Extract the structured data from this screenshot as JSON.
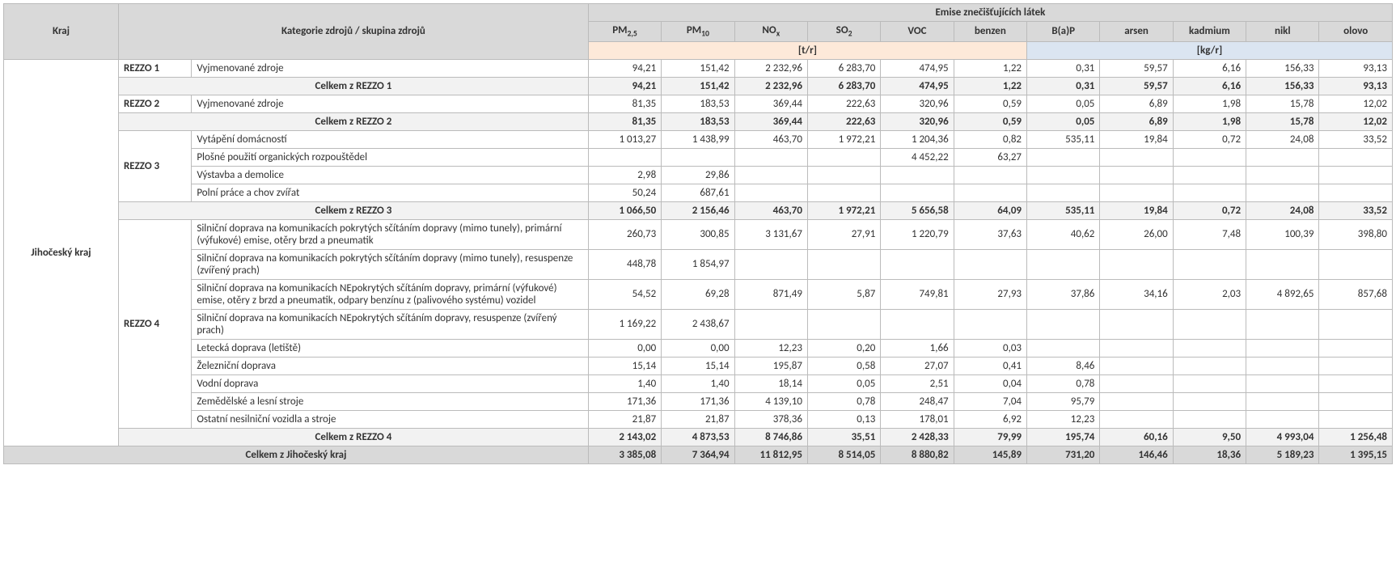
{
  "headers": {
    "kraj": "Kraj",
    "kategorie": "Kategorie zdrojů / skupina zdrojů",
    "emise": "Emise znečišťujících látek",
    "unit_tr": "[t/r]",
    "unit_kg": "[kg/r]",
    "pm25_a": "PM",
    "pm25_b": "2,5",
    "pm10_a": "PM",
    "pm10_b": "10",
    "nox_a": "NO",
    "nox_b": "x",
    "so2_a": "SO",
    "so2_b": "2",
    "voc": "VOC",
    "benzen": "benzen",
    "bap": "B(a)P",
    "arsen": "arsen",
    "kadm": "kadmium",
    "nikl": "nikl",
    "olovo": "olovo"
  },
  "kraj_name": "Jihočeský kraj",
  "rows": [
    {
      "rezzo": "REZZO 1",
      "rezzo_rows": 1,
      "kat": "Vyjmenované zdroje",
      "v": [
        "94,21",
        "151,42",
        "2 232,96",
        "6 283,70",
        "474,95",
        "1,22",
        "0,31",
        "59,57",
        "6,16",
        "156,33",
        "93,13"
      ]
    },
    {
      "subtotal": true,
      "kat": "Celkem z REZZO 1",
      "v": [
        "94,21",
        "151,42",
        "2 232,96",
        "6 283,70",
        "474,95",
        "1,22",
        "0,31",
        "59,57",
        "6,16",
        "156,33",
        "93,13"
      ]
    },
    {
      "rezzo": "REZZO 2",
      "rezzo_rows": 1,
      "kat": "Vyjmenované zdroje",
      "v": [
        "81,35",
        "183,53",
        "369,44",
        "222,63",
        "320,96",
        "0,59",
        "0,05",
        "6,89",
        "1,98",
        "15,78",
        "12,02"
      ]
    },
    {
      "subtotal": true,
      "kat": "Celkem z REZZO 2",
      "v": [
        "81,35",
        "183,53",
        "369,44",
        "222,63",
        "320,96",
        "0,59",
        "0,05",
        "6,89",
        "1,98",
        "15,78",
        "12,02"
      ]
    },
    {
      "rezzo": "REZZO 3",
      "rezzo_rows": 4,
      "kat": "Vytápění domácností",
      "v": [
        "1 013,27",
        "1 438,99",
        "463,70",
        "1 972,21",
        "1 204,36",
        "0,82",
        "535,11",
        "19,84",
        "0,72",
        "24,08",
        "33,52"
      ]
    },
    {
      "kat": "Plošné použití organických rozpouštědel",
      "v": [
        "",
        "",
        "",
        "",
        "4 452,22",
        "63,27",
        "",
        "",
        "",
        "",
        ""
      ]
    },
    {
      "kat": "Výstavba a demolice",
      "v": [
        "2,98",
        "29,86",
        "",
        "",
        "",
        "",
        "",
        "",
        "",
        "",
        ""
      ]
    },
    {
      "kat": "Polní práce a chov zvířat",
      "v": [
        "50,24",
        "687,61",
        "",
        "",
        "",
        "",
        "",
        "",
        "",
        "",
        ""
      ]
    },
    {
      "subtotal": true,
      "kat": "Celkem z REZZO 3",
      "v": [
        "1 066,50",
        "2 156,46",
        "463,70",
        "1 972,21",
        "5 656,58",
        "64,09",
        "535,11",
        "19,84",
        "0,72",
        "24,08",
        "33,52"
      ]
    },
    {
      "rezzo": "REZZO 4",
      "rezzo_rows": 9,
      "kat": "Silniční doprava na komunikacích pokrytých sčítáním dopravy (mimo tunely), primární (výfukové) emise, otěry brzd a pneumatik",
      "v": [
        "260,73",
        "300,85",
        "3 131,67",
        "27,91",
        "1 220,79",
        "37,63",
        "40,62",
        "26,00",
        "7,48",
        "100,39",
        "398,80"
      ]
    },
    {
      "kat": "Silniční doprava na komunikacích pokrytých sčítáním dopravy (mimo tunely), resuspenze (zvířený prach)",
      "v": [
        "448,78",
        "1 854,97",
        "",
        "",
        "",
        "",
        "",
        "",
        "",
        "",
        ""
      ]
    },
    {
      "kat": "Silniční doprava na komunikacích NEpokrytých sčítáním dopravy, primární (výfukové) emise, otěry z brzd a pneumatik, odpary benzínu z (palivového systému) vozidel",
      "v": [
        "54,52",
        "69,28",
        "871,49",
        "5,87",
        "749,81",
        "27,93",
        "37,86",
        "34,16",
        "2,03",
        "4 892,65",
        "857,68"
      ]
    },
    {
      "kat": "Silniční doprava na komunikacích NEpokrytých sčítáním dopravy, resuspenze (zvířený prach)",
      "v": [
        "1 169,22",
        "2 438,67",
        "",
        "",
        "",
        "",
        "",
        "",
        "",
        "",
        ""
      ]
    },
    {
      "kat": "Letecká doprava (letiště)",
      "v": [
        "0,00",
        "0,00",
        "12,23",
        "0,20",
        "1,66",
        "0,03",
        "",
        "",
        "",
        "",
        ""
      ]
    },
    {
      "kat": "Železniční doprava",
      "v": [
        "15,14",
        "15,14",
        "195,87",
        "0,58",
        "27,07",
        "0,41",
        "8,46",
        "",
        "",
        "",
        ""
      ]
    },
    {
      "kat": "Vodní doprava",
      "v": [
        "1,40",
        "1,40",
        "18,14",
        "0,05",
        "2,51",
        "0,04",
        "0,78",
        "",
        "",
        "",
        ""
      ]
    },
    {
      "kat": "Zemědělské a lesní stroje",
      "v": [
        "171,36",
        "171,36",
        "4 139,10",
        "0,78",
        "248,47",
        "7,04",
        "95,79",
        "",
        "",
        "",
        ""
      ]
    },
    {
      "kat": "Ostatní nesilniční vozidla a stroje",
      "v": [
        "21,87",
        "21,87",
        "378,36",
        "0,13",
        "178,01",
        "6,92",
        "12,23",
        "",
        "",
        "",
        ""
      ]
    },
    {
      "subtotal": true,
      "kat": "Celkem z REZZO 4",
      "v": [
        "2 143,02",
        "4 873,53",
        "8 746,86",
        "35,51",
        "2 428,33",
        "79,99",
        "195,74",
        "60,16",
        "9,50",
        "4 993,04",
        "1 256,48"
      ]
    }
  ],
  "grand": {
    "kat": "Celkem z Jihočeský kraj",
    "v": [
      "3 385,08",
      "7 364,94",
      "11 812,95",
      "8 514,05",
      "8 880,82",
      "145,89",
      "731,20",
      "146,46",
      "18,36",
      "5 189,23",
      "1 395,15"
    ]
  }
}
